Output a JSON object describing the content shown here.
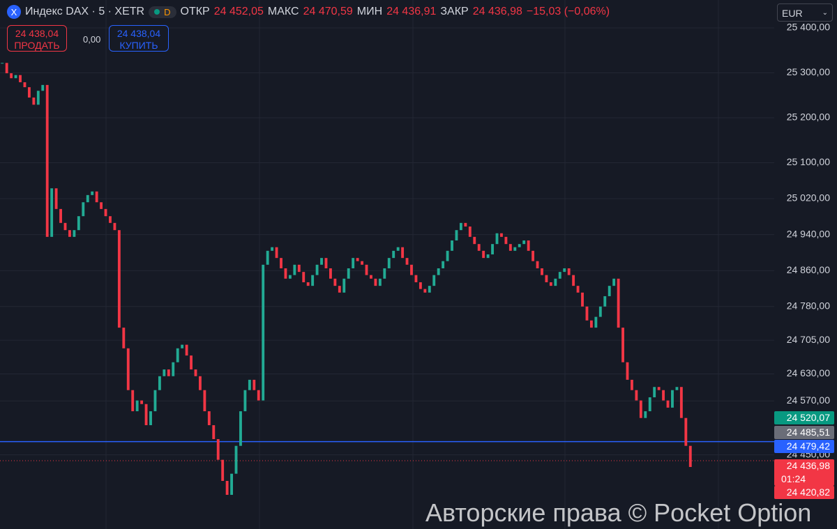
{
  "header": {
    "symbol": "Индекс DAX · 5 · XETR",
    "badge": "D",
    "open_label": "ОТКР",
    "open": "24 452,05",
    "high_label": "МАКС",
    "high": "24 470,59",
    "low_label": "МИН",
    "low": "24 436,91",
    "close_label": "ЗАКР",
    "close": "24 436,98",
    "change": "−15,03 (−0,06%)"
  },
  "trade": {
    "sell_price": "24 438,04",
    "sell_label": "ПРОДАТЬ",
    "spread": "0,00",
    "buy_price": "24 438,04",
    "buy_label": "КУПИТЬ"
  },
  "currency": "EUR",
  "badges": [
    {
      "text": "24 520,07",
      "color": "#089981"
    },
    {
      "text": "24 485,51",
      "color": "#6a6d78"
    },
    {
      "text": "24 479,42",
      "color": "#2962ff"
    },
    {
      "text": "24 436,98",
      "sub": "01:24",
      "color": "#f23645"
    },
    {
      "text": "24 420,82",
      "color": "#f23645"
    }
  ],
  "watermark": "Авторские права © Pocket Option",
  "chart_data": {
    "type": "candlestick",
    "ylim": [
      24285,
      25462
    ],
    "yticks": [
      {
        "value": 25400,
        "label": "25 400,00"
      },
      {
        "value": 25300,
        "label": "25 300,00"
      },
      {
        "value": 25200,
        "label": "25 200,00"
      },
      {
        "value": 25100,
        "label": "25 100,00"
      },
      {
        "value": 25020,
        "label": "25 020,00"
      },
      {
        "value": 24940,
        "label": "24 940,00"
      },
      {
        "value": 24860,
        "label": "24 860,00"
      },
      {
        "value": 24780,
        "label": "24 780,00"
      },
      {
        "value": 24705,
        "label": "24 705,00"
      },
      {
        "value": 24630,
        "label": "24 630,00"
      },
      {
        "value": 24570,
        "label": "24 570,00"
      },
      {
        "value": 24450,
        "label": "24 450,00"
      }
    ],
    "current_line": 24479.42,
    "last_line": 24436.98,
    "up_color": "#22ab94",
    "down_color": "#f23645",
    "values": [
      25322,
      25299,
      25288,
      25295,
      25279,
      25268,
      25245,
      25229,
      25260,
      25273,
      24935,
      25043,
      24997,
      24966,
      24950,
      24935,
      24950,
      24981,
      25012,
      25028,
      25036,
      25012,
      24997,
      24981,
      24966,
      24950,
      24733,
      24687,
      24594,
      24547,
      24571,
      24563,
      24516,
      24547,
      24594,
      24625,
      24640,
      24625,
      24656,
      24687,
      24695,
      24671,
      24640,
      24625,
      24594,
      24547,
      24516,
      24485,
      24439,
      24392,
      24361,
      24408,
      24470,
      24547,
      24594,
      24617,
      24594,
      24571,
      24873,
      24904,
      24912,
      24888,
      24865,
      24842,
      24850,
      24873,
      24857,
      24834,
      24826,
      24850,
      24873,
      24888,
      24865,
      24842,
      24826,
      24811,
      24842,
      24865,
      24888,
      24881,
      24873,
      24850,
      24842,
      24826,
      24842,
      24865,
      24888,
      24904,
      24912,
      24888,
      24873,
      24850,
      24834,
      24819,
      24811,
      24826,
      24850,
      24865,
      24881,
      24904,
      24927,
      24950,
      24966,
      24958,
      24935,
      24919,
      24904,
      24888,
      24896,
      24919,
      24943,
      24935,
      24919,
      24904,
      24912,
      24919,
      24927,
      24904,
      24881,
      24865,
      24850,
      24834,
      24826,
      24842,
      24857,
      24865,
      24850,
      24826,
      24811,
      24780,
      24749,
      24733,
      24757,
      24780,
      24803,
      24826,
      24842,
      24733,
      24656,
      24617,
      24594,
      24571,
      24532,
      24547,
      24578,
      24601,
      24594,
      24571,
      24555,
      24594,
      24601,
      24532,
      24470,
      24423
    ]
  }
}
